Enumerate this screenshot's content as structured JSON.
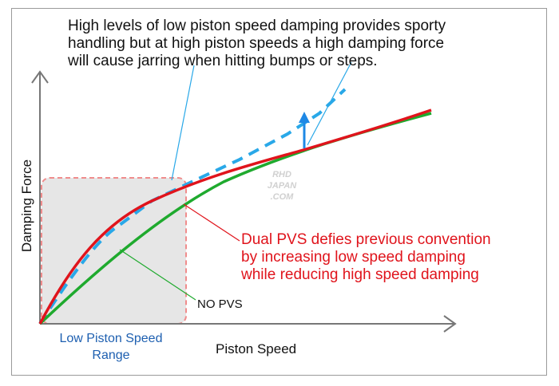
{
  "annotations": {
    "top_note_lines": [
      "High levels of low piston speed damping provides sporty",
      "handling but at high piston speeds a high damping force",
      "will cause jarring when hitting bumps or steps."
    ],
    "pvs_note_lines": [
      "Dual PVS defies previous convention",
      "by increasing low speed damping",
      "while reducing high speed damping"
    ],
    "no_pvs_label": "NO PVS",
    "low_speed_range_lines": [
      "Low Piston Speed",
      "Range"
    ]
  },
  "axes": {
    "x_label": "Piston Speed",
    "y_label": "Damping Force"
  },
  "watermark_lines": [
    "RHD",
    "JAPAN",
    ".COM"
  ],
  "colors": {
    "dual_pvs": "#e0141c",
    "no_pvs": "#1faa2e",
    "high_damping": "#29a8e8",
    "range_box": "#f08c8c",
    "range_fill": "#e6e6e6",
    "axis": "#777777",
    "range_text": "#1d5fb0"
  }
}
